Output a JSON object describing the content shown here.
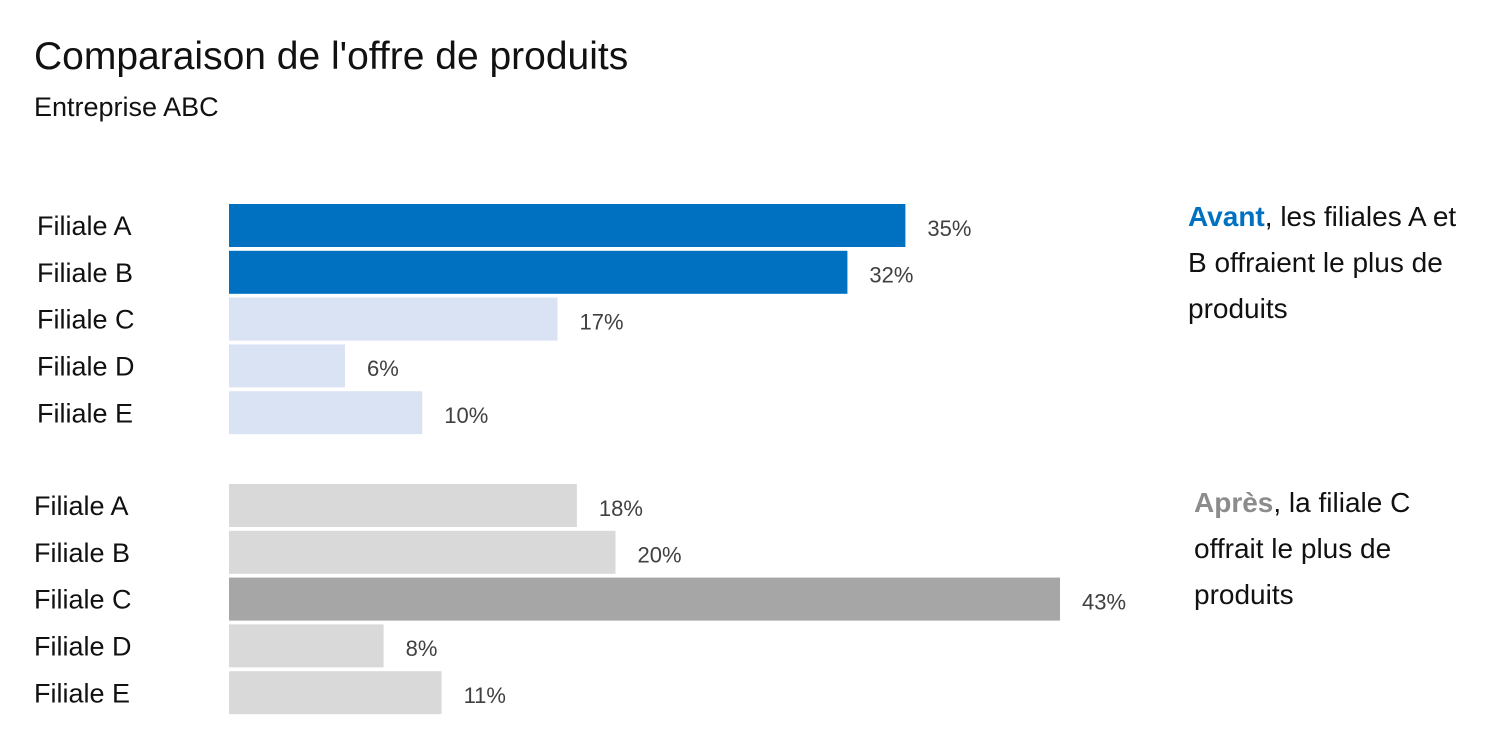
{
  "title": "Comparaison de l'offre de produits",
  "subtitle": "Entreprise ABC",
  "chart_data": [
    {
      "type": "bar",
      "orientation": "horizontal",
      "name": "Avant",
      "categories": [
        "Filiale A",
        "Filiale B",
        "Filiale C",
        "Filiale D",
        "Filiale E"
      ],
      "values": [
        35,
        32,
        17,
        6,
        10
      ],
      "labels": [
        "35%",
        "32%",
        "17%",
        "6%",
        "10%"
      ],
      "colors": [
        "#0070c0",
        "#0070c0",
        "#dae3f3",
        "#dae3f3",
        "#dae3f3"
      ],
      "xlim": [
        0,
        43
      ],
      "unit": "%"
    },
    {
      "type": "bar",
      "orientation": "horizontal",
      "name": "Après",
      "categories": [
        "Filiale A",
        "Filiale B",
        "Filiale C",
        "Filiale D",
        "Filiale E"
      ],
      "values": [
        18,
        20,
        43,
        8,
        11
      ],
      "labels": [
        "18%",
        "20%",
        "43%",
        "8%",
        "11%"
      ],
      "colors": [
        "#d9d9d9",
        "#d9d9d9",
        "#a6a6a6",
        "#d9d9d9",
        "#d9d9d9"
      ],
      "xlim": [
        0,
        43
      ],
      "unit": "%"
    }
  ],
  "annotations": {
    "before": {
      "keyword": "Avant",
      "text": ", les filiales A et B offraient le plus de produits",
      "color": "#0070c0"
    },
    "after": {
      "keyword": "Après",
      "text": ", la filiale C offrait le plus de produits",
      "color": "#8c8c8c"
    }
  }
}
